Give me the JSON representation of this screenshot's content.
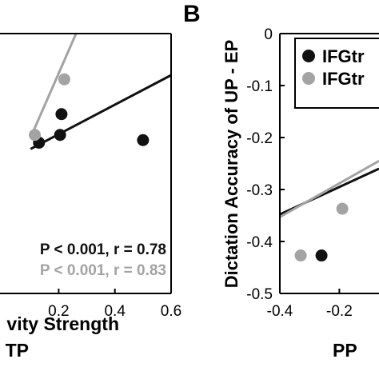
{
  "colors": {
    "black_series": "#111111",
    "gray_series": "#a3a3a3",
    "axis": "#000000"
  },
  "chart_data": [
    {
      "type": "scatter",
      "panel_label": "",
      "xlabel_lines": [
        "vity Strength",
        "TP"
      ],
      "ylabel": "",
      "xlim": [
        -0.06,
        0.6
      ],
      "ylim": [
        -0.5,
        0
      ],
      "x_ticks": [
        {
          "value": 0.2,
          "label": "0.2"
        },
        {
          "value": 0.4,
          "label": "0.4"
        },
        {
          "value": 0.6,
          "label": "0.6"
        }
      ],
      "series": [
        {
          "color_key": "black_series",
          "points": [
            {
              "x": 0.13,
              "y": -0.21
            },
            {
              "x": 0.205,
              "y": -0.195
            },
            {
              "x": 0.21,
              "y": -0.155
            },
            {
              "x": 0.5,
              "y": -0.205
            }
          ],
          "fit": {
            "x": [
              0.1,
              0.6
            ],
            "y": [
              -0.222,
              -0.08
            ]
          }
        },
        {
          "color_key": "gray_series",
          "points": [
            {
              "x": 0.115,
              "y": -0.195
            },
            {
              "x": 0.22,
              "y": -0.088
            }
          ],
          "fit": {
            "x": [
              0.1,
              0.27
            ],
            "y": [
              -0.2,
              0.01
            ]
          }
        }
      ],
      "annotations": [
        {
          "text": "P < 0.001, r = 0.78",
          "color_key": "black_series"
        },
        {
          "text": "P < 0.001, r = 0.83",
          "color_key": "gray_series"
        }
      ]
    },
    {
      "type": "scatter",
      "panel_label": "B",
      "ylabel": "Dictation Accuracy of UP - EP",
      "xlabel": "PP",
      "xlim": [
        -0.4,
        -0.0667
      ],
      "ylim": [
        -0.5,
        0
      ],
      "x_ticks": [
        {
          "value": -0.4,
          "label": "-0.4"
        },
        {
          "value": -0.2,
          "label": "-0.2"
        }
      ],
      "y_ticks": [
        {
          "value": 0,
          "label": "0"
        },
        {
          "value": -0.1,
          "label": "-0.1"
        },
        {
          "value": -0.2,
          "label": "-0.2"
        },
        {
          "value": -0.3,
          "label": "-0.3"
        },
        {
          "value": -0.4,
          "label": "-0.4"
        },
        {
          "value": -0.5,
          "label": "-0.5"
        }
      ],
      "legend": {
        "position": "top-right",
        "entries": [
          {
            "label": "IFGtr",
            "color_key": "black_series"
          },
          {
            "label": "IFGtr",
            "color_key": "gray_series"
          }
        ]
      },
      "series": [
        {
          "color_key": "black_series",
          "points": [
            {
              "x": -0.26,
              "y": -0.427
            }
          ],
          "fit": {
            "x": [
              -0.4,
              -0.0667
            ],
            "y": [
              -0.348,
              -0.26
            ]
          }
        },
        {
          "color_key": "gray_series",
          "points": [
            {
              "x": -0.33,
              "y": -0.427
            },
            {
              "x": -0.19,
              "y": -0.337
            }
          ],
          "fit": {
            "x": [
              -0.4,
              -0.0667
            ],
            "y": [
              -0.353,
              -0.245
            ]
          }
        }
      ]
    }
  ]
}
